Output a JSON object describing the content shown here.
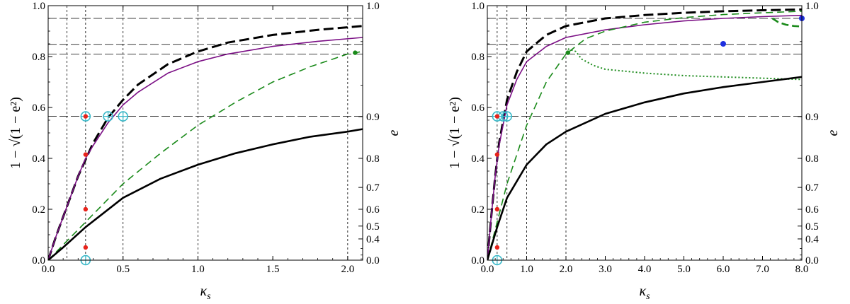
{
  "chart_data": [
    {
      "type": "line",
      "xlabel": "κ_s",
      "ylabel": "1 − √(1 − e²)",
      "ylabel_right": "e",
      "xlim": [
        0,
        2.1
      ],
      "ylim": [
        0,
        1.0
      ],
      "x_ticks": [
        "0.0",
        "0.5",
        "1.0",
        "1.5",
        "2.0"
      ],
      "x_tick_values": [
        0,
        0.5,
        1.0,
        1.5,
        2.0
      ],
      "y_ticks": [
        "0.0",
        "0.2",
        "0.4",
        "0.6",
        "0.8",
        "1.0"
      ],
      "y_tick_values": [
        0,
        0.2,
        0.4,
        0.6,
        0.8,
        1.0
      ],
      "right_ticks": [
        "0.0",
        "0.4",
        "0.5",
        "0.6",
        "0.7",
        "0.8",
        "0.9",
        "1.0"
      ],
      "right_tick_values": [
        0,
        0.4,
        0.5,
        0.6,
        0.7,
        0.8,
        0.9,
        1.0
      ],
      "vlines": [
        0.125,
        0.25,
        0.5,
        1.0,
        2.0
      ],
      "hlines": [
        0.565,
        0.81,
        0.848,
        0.95
      ],
      "series": [
        {
          "style": "black-dashed-thick",
          "color": "#000000",
          "x": [
            0,
            0.05,
            0.1,
            0.2,
            0.3,
            0.4,
            0.5,
            0.6,
            0.8,
            1.0,
            1.2,
            1.5,
            1.8,
            2.1
          ],
          "y": [
            0,
            0.09,
            0.17,
            0.33,
            0.46,
            0.56,
            0.63,
            0.69,
            0.77,
            0.82,
            0.855,
            0.885,
            0.905,
            0.92
          ]
        },
        {
          "style": "purple-solid",
          "color": "#7b0f85",
          "x": [
            0,
            0.05,
            0.1,
            0.2,
            0.25,
            0.3,
            0.4,
            0.5,
            0.6,
            0.8,
            1.0,
            1.2,
            1.5,
            1.8,
            2.1
          ],
          "y": [
            0,
            0.09,
            0.17,
            0.33,
            0.4,
            0.45,
            0.54,
            0.61,
            0.66,
            0.735,
            0.78,
            0.81,
            0.84,
            0.86,
            0.875
          ]
        },
        {
          "style": "green-dashed",
          "color": "#1a8a1a",
          "x": [
            0,
            0.1,
            0.25,
            0.5,
            0.75,
            1.0,
            1.25,
            1.5,
            1.75,
            2.0,
            2.1
          ],
          "y": [
            0,
            0.06,
            0.15,
            0.3,
            0.42,
            0.53,
            0.62,
            0.7,
            0.76,
            0.81,
            0.82
          ]
        },
        {
          "style": "black-solid-thick",
          "color": "#000000",
          "x": [
            0,
            0.1,
            0.25,
            0.5,
            0.75,
            1.0,
            1.25,
            1.5,
            1.75,
            2.0,
            2.1
          ],
          "y": [
            0,
            0.05,
            0.13,
            0.245,
            0.32,
            0.375,
            0.42,
            0.455,
            0.485,
            0.505,
            0.515
          ]
        }
      ],
      "points": [
        {
          "x": 0.25,
          "y": 0.565,
          "color": "#e8231b"
        },
        {
          "x": 0.25,
          "y": 0.415,
          "color": "#e8231b"
        },
        {
          "x": 0.25,
          "y": 0.2,
          "color": "#e8231b"
        },
        {
          "x": 0.25,
          "y": 0.05,
          "color": "#e8231b"
        },
        {
          "x": 2.05,
          "y": 0.815,
          "color": "#1a8a1a"
        }
      ],
      "open_markers": [
        {
          "x": 0.25,
          "y": 0.565,
          "color": "#38b8c8"
        },
        {
          "x": 0.4,
          "y": 0.565,
          "color": "#38b8c8"
        },
        {
          "x": 0.5,
          "y": 0.565,
          "color": "#38b8c8"
        },
        {
          "x": 0.25,
          "y": 0.0,
          "color": "#38b8c8"
        }
      ]
    },
    {
      "type": "line",
      "xlabel": "κ_s",
      "ylabel": "1 − √(1 − e²)",
      "ylabel_right": "e",
      "xlim": [
        0,
        8.0
      ],
      "ylim": [
        0,
        1.0
      ],
      "x_ticks": [
        "0.0",
        "1.0",
        "2.0",
        "3.0",
        "4.0",
        "5.0",
        "6.0",
        "7.0",
        "8.0"
      ],
      "x_tick_values": [
        0,
        1,
        2,
        3,
        4,
        5,
        6,
        7,
        8
      ],
      "y_ticks": [
        "0.0",
        "0.2",
        "0.4",
        "0.6",
        "0.8",
        "1.0"
      ],
      "y_tick_values": [
        0,
        0.2,
        0.4,
        0.6,
        0.8,
        1.0
      ],
      "right_ticks": [
        "0.0",
        "0.4",
        "0.5",
        "0.6",
        "0.7",
        "0.8",
        "0.9",
        "1.0"
      ],
      "right_tick_values": [
        0,
        0.4,
        0.5,
        0.6,
        0.7,
        0.8,
        0.9,
        1.0
      ],
      "vlines": [
        0.25,
        0.5,
        1.0,
        2.0
      ],
      "hlines": [
        0.565,
        0.81,
        0.848,
        0.95
      ],
      "series": [
        {
          "style": "black-dashed-thick",
          "color": "#000000",
          "x": [
            0,
            0.1,
            0.2,
            0.3,
            0.5,
            0.75,
            1.0,
            1.5,
            2.0,
            3.0,
            4.0,
            5.0,
            6.0,
            7.0,
            8.0
          ],
          "y": [
            0,
            0.17,
            0.33,
            0.46,
            0.63,
            0.74,
            0.82,
            0.885,
            0.92,
            0.95,
            0.963,
            0.972,
            0.978,
            0.982,
            0.985
          ]
        },
        {
          "style": "purple-solid",
          "color": "#7b0f85",
          "x": [
            0,
            0.1,
            0.2,
            0.3,
            0.5,
            0.75,
            1.0,
            1.5,
            2.0,
            3.0,
            4.0,
            5.0,
            6.0,
            7.0,
            8.0
          ],
          "y": [
            0,
            0.17,
            0.33,
            0.45,
            0.61,
            0.71,
            0.78,
            0.84,
            0.875,
            0.905,
            0.925,
            0.94,
            0.95,
            0.957,
            0.962
          ]
        },
        {
          "style": "green-dashed",
          "color": "#1a8a1a",
          "x": [
            0,
            0.25,
            0.5,
            1.0,
            1.5,
            2.0,
            2.5,
            3.0,
            4.0,
            5.0,
            6.0,
            7.0,
            8.0
          ],
          "y": [
            0,
            0.15,
            0.3,
            0.53,
            0.7,
            0.81,
            0.87,
            0.9,
            0.935,
            0.953,
            0.965,
            0.972,
            0.978
          ]
        },
        {
          "style": "green-dashed-thick",
          "color": "#1a8a1a",
          "x": [
            7.25,
            7.4,
            7.6,
            7.8,
            8.0
          ],
          "y": [
            0.95,
            0.935,
            0.925,
            0.92,
            0.918
          ]
        },
        {
          "style": "green-dotted",
          "color": "#1a8a1a",
          "x": [
            2.05,
            2.25,
            2.4,
            2.7,
            3.0,
            4.0,
            5.0,
            6.0,
            7.0,
            8.0
          ],
          "y": [
            0.83,
            0.82,
            0.79,
            0.765,
            0.75,
            0.735,
            0.725,
            0.72,
            0.715,
            0.71
          ]
        },
        {
          "style": "black-solid-thick",
          "color": "#000000",
          "x": [
            0,
            0.25,
            0.5,
            1.0,
            1.5,
            2.0,
            3.0,
            4.0,
            5.0,
            6.0,
            7.0,
            8.0
          ],
          "y": [
            0,
            0.13,
            0.245,
            0.375,
            0.455,
            0.505,
            0.575,
            0.62,
            0.655,
            0.68,
            0.7,
            0.72
          ]
        }
      ],
      "points": [
        {
          "x": 0.25,
          "y": 0.565,
          "color": "#e8231b"
        },
        {
          "x": 0.25,
          "y": 0.415,
          "color": "#e8231b"
        },
        {
          "x": 0.25,
          "y": 0.2,
          "color": "#e8231b"
        },
        {
          "x": 0.25,
          "y": 0.05,
          "color": "#e8231b"
        },
        {
          "x": 2.05,
          "y": 0.815,
          "color": "#1a8a1a"
        },
        {
          "x": 6.0,
          "y": 0.85,
          "color": "#1f30e0"
        },
        {
          "x": 8.0,
          "y": 0.95,
          "color": "#1f30e0"
        }
      ],
      "open_markers": [
        {
          "x": 0.25,
          "y": 0.565,
          "color": "#38b8c8"
        },
        {
          "x": 0.4,
          "y": 0.565,
          "color": "#38b8c8"
        },
        {
          "x": 0.5,
          "y": 0.565,
          "color": "#38b8c8"
        },
        {
          "x": 0.25,
          "y": 0.0,
          "color": "#38b8c8"
        }
      ]
    }
  ]
}
